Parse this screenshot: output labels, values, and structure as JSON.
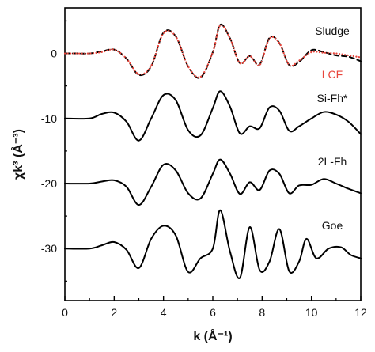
{
  "chart_data": {
    "type": "line",
    "xlabel": "k (Å⁻¹)",
    "ylabel": "χk³ (Å⁻³)",
    "xlim": [
      0,
      12
    ],
    "ylim": [
      -38,
      7
    ],
    "x_ticks": [
      0,
      2,
      4,
      6,
      8,
      10,
      12
    ],
    "y_ticks": [
      0,
      -10,
      -20,
      -30
    ],
    "annotations": [
      "Sludge",
      "LCF",
      "Si-Fh*",
      "2L-Fh",
      "Goe"
    ],
    "series": [
      {
        "name": "Sludge",
        "color": "#000000",
        "style": "dashed",
        "points": [
          [
            0,
            0
          ],
          [
            0.5,
            0
          ],
          [
            1,
            0
          ],
          [
            1.5,
            0.3
          ],
          [
            2,
            0.6
          ],
          [
            2.5,
            -0.8
          ],
          [
            3,
            -3.3
          ],
          [
            3.5,
            -2
          ],
          [
            4,
            3.2
          ],
          [
            4.5,
            2.6
          ],
          [
            5,
            -2
          ],
          [
            5.5,
            -3.7
          ],
          [
            6,
            0.2
          ],
          [
            6.3,
            4.4
          ],
          [
            6.7,
            2.3
          ],
          [
            7.1,
            -1.5
          ],
          [
            7.5,
            -0.4
          ],
          [
            7.9,
            -1.7
          ],
          [
            8.3,
            2.4
          ],
          [
            8.7,
            1.6
          ],
          [
            9.1,
            -1.8
          ],
          [
            9.5,
            -1.3
          ],
          [
            10,
            0.5
          ],
          [
            10.5,
            0.2
          ],
          [
            11,
            -0.3
          ],
          [
            11.5,
            -0.5
          ],
          [
            12,
            -1.2
          ]
        ]
      },
      {
        "name": "LCF",
        "color": "#e8463c",
        "style": "dotted",
        "points": [
          [
            0,
            0
          ],
          [
            0.5,
            0
          ],
          [
            1,
            0
          ],
          [
            1.5,
            0.2
          ],
          [
            2,
            0.6
          ],
          [
            2.5,
            -0.8
          ],
          [
            3,
            -3.2
          ],
          [
            3.5,
            -1.9
          ],
          [
            4,
            3.1
          ],
          [
            4.5,
            2.6
          ],
          [
            5,
            -2
          ],
          [
            5.5,
            -3.6
          ],
          [
            6,
            0.2
          ],
          [
            6.3,
            4.3
          ],
          [
            6.7,
            2.3
          ],
          [
            7.1,
            -1.5
          ],
          [
            7.5,
            -0.4
          ],
          [
            7.9,
            -1.8
          ],
          [
            8.3,
            2.3
          ],
          [
            8.7,
            1.6
          ],
          [
            9.1,
            -1.8
          ],
          [
            9.5,
            -1.1
          ],
          [
            10,
            0.2
          ],
          [
            10.5,
            0.1
          ],
          [
            11,
            0
          ],
          [
            11.5,
            -0.3
          ],
          [
            12,
            -0.6
          ]
        ]
      },
      {
        "name": "Si-Fh*",
        "color": "#000000",
        "style": "solid",
        "points": [
          [
            0,
            -10
          ],
          [
            1,
            -10
          ],
          [
            1.5,
            -9.3
          ],
          [
            2,
            -9.1
          ],
          [
            2.5,
            -10.5
          ],
          [
            3,
            -13.4
          ],
          [
            3.5,
            -10
          ],
          [
            4,
            -6.4
          ],
          [
            4.5,
            -7.2
          ],
          [
            5,
            -11.8
          ],
          [
            5.5,
            -12.6
          ],
          [
            6,
            -8.4
          ],
          [
            6.3,
            -5.8
          ],
          [
            6.7,
            -8.2
          ],
          [
            7.1,
            -12.3
          ],
          [
            7.5,
            -11.2
          ],
          [
            7.9,
            -11.5
          ],
          [
            8.3,
            -8.3
          ],
          [
            8.7,
            -8.8
          ],
          [
            9.1,
            -11.9
          ],
          [
            9.5,
            -11.2
          ],
          [
            10,
            -10
          ],
          [
            10.5,
            -9
          ],
          [
            11,
            -9.4
          ],
          [
            11.5,
            -10.5
          ],
          [
            12,
            -12.4
          ]
        ]
      },
      {
        "name": "2L-Fh",
        "color": "#000000",
        "style": "solid",
        "points": [
          [
            0,
            -20
          ],
          [
            1,
            -20
          ],
          [
            1.5,
            -19.7
          ],
          [
            2,
            -19.5
          ],
          [
            2.5,
            -20.5
          ],
          [
            3,
            -23.3
          ],
          [
            3.5,
            -20.5
          ],
          [
            4,
            -17.1
          ],
          [
            4.5,
            -18
          ],
          [
            5,
            -21.5
          ],
          [
            5.5,
            -22.3
          ],
          [
            6,
            -18.5
          ],
          [
            6.3,
            -16.3
          ],
          [
            6.7,
            -18.5
          ],
          [
            7.1,
            -21.6
          ],
          [
            7.5,
            -19.8
          ],
          [
            7.9,
            -21
          ],
          [
            8.3,
            -18
          ],
          [
            8.7,
            -18.5
          ],
          [
            9.1,
            -21.5
          ],
          [
            9.5,
            -20.3
          ],
          [
            10,
            -20.2
          ],
          [
            10.5,
            -19.3
          ],
          [
            11,
            -20
          ],
          [
            11.5,
            -20.8
          ],
          [
            12,
            -21.5
          ]
        ]
      },
      {
        "name": "Goe",
        "color": "#000000",
        "style": "solid",
        "points": [
          [
            0,
            -30
          ],
          [
            1,
            -30
          ],
          [
            1.5,
            -29.5
          ],
          [
            2,
            -29
          ],
          [
            2.5,
            -30.2
          ],
          [
            3,
            -33
          ],
          [
            3.5,
            -28.5
          ],
          [
            4,
            -26.5
          ],
          [
            4.5,
            -28
          ],
          [
            5,
            -33.6
          ],
          [
            5.5,
            -31.5
          ],
          [
            6,
            -30
          ],
          [
            6.3,
            -24.1
          ],
          [
            6.7,
            -30.5
          ],
          [
            7.1,
            -34.5
          ],
          [
            7.5,
            -26.7
          ],
          [
            7.9,
            -33.3
          ],
          [
            8.3,
            -32
          ],
          [
            8.7,
            -27
          ],
          [
            9.1,
            -33.5
          ],
          [
            9.5,
            -32
          ],
          [
            9.8,
            -28.5
          ],
          [
            10.2,
            -31.5
          ],
          [
            10.7,
            -30
          ],
          [
            11.2,
            -29.8
          ],
          [
            11.6,
            -31
          ],
          [
            12,
            -31.5
          ]
        ]
      }
    ]
  }
}
